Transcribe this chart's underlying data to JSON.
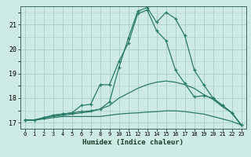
{
  "xlabel": "Humidex (Indice chaleur)",
  "background_color": "#ceeae4",
  "grid_color": "#a8cfc8",
  "line_color": "#2a7a6a",
  "xlim": [
    -0.5,
    23.5
  ],
  "ylim": [
    16.75,
    21.75
  ],
  "xticks": [
    0,
    1,
    2,
    3,
    4,
    5,
    6,
    7,
    8,
    9,
    10,
    11,
    12,
    13,
    14,
    15,
    16,
    17,
    18,
    19,
    20,
    21,
    22,
    23
  ],
  "yticks": [
    17,
    18,
    19,
    20,
    21
  ],
  "lines": [
    {
      "x": [
        0,
        1,
        2,
        3,
        4,
        5,
        6,
        7,
        8,
        9,
        10,
        11,
        12,
        13,
        14,
        15,
        16,
        17,
        18,
        19,
        20,
        21,
        22,
        23
      ],
      "y": [
        17.1,
        17.1,
        17.15,
        17.2,
        17.25,
        17.25,
        17.25,
        17.25,
        17.25,
        17.3,
        17.35,
        17.38,
        17.4,
        17.43,
        17.45,
        17.48,
        17.48,
        17.45,
        17.4,
        17.35,
        17.25,
        17.15,
        17.05,
        16.9
      ],
      "marker": false
    },
    {
      "x": [
        0,
        1,
        2,
        3,
        4,
        5,
        6,
        7,
        8,
        9,
        10,
        11,
        12,
        13,
        14,
        15,
        16,
        17,
        18,
        19,
        20,
        21,
        22,
        23
      ],
      "y": [
        17.1,
        17.1,
        17.2,
        17.25,
        17.3,
        17.35,
        17.4,
        17.45,
        17.55,
        17.7,
        18.0,
        18.2,
        18.4,
        18.55,
        18.65,
        18.7,
        18.65,
        18.55,
        18.4,
        18.15,
        17.95,
        17.65,
        17.4,
        16.9
      ],
      "marker": false
    },
    {
      "x": [
        0,
        1,
        2,
        3,
        4,
        5,
        6,
        7,
        8,
        9,
        10,
        11,
        12,
        13,
        14,
        15,
        16,
        17,
        18,
        19,
        20,
        21,
        22,
        23
      ],
      "y": [
        17.1,
        17.1,
        17.2,
        17.3,
        17.35,
        17.4,
        17.7,
        17.75,
        18.55,
        18.55,
        19.5,
        20.25,
        21.45,
        21.6,
        20.75,
        20.35,
        19.15,
        18.6,
        18.05,
        18.1,
        18.0,
        17.7,
        17.4,
        16.9
      ],
      "marker": true
    },
    {
      "x": [
        0,
        1,
        2,
        3,
        4,
        5,
        6,
        7,
        8,
        9,
        10,
        11,
        12,
        13,
        14,
        15,
        16,
        17,
        18,
        19,
        20,
        21,
        22,
        23
      ],
      "y": [
        17.1,
        17.1,
        17.2,
        17.3,
        17.35,
        17.4,
        17.45,
        17.48,
        17.55,
        17.85,
        19.25,
        20.45,
        21.55,
        21.7,
        21.1,
        21.5,
        21.25,
        20.55,
        19.15,
        18.55,
        18.0,
        17.7,
        17.4,
        16.9
      ],
      "marker": true
    }
  ]
}
